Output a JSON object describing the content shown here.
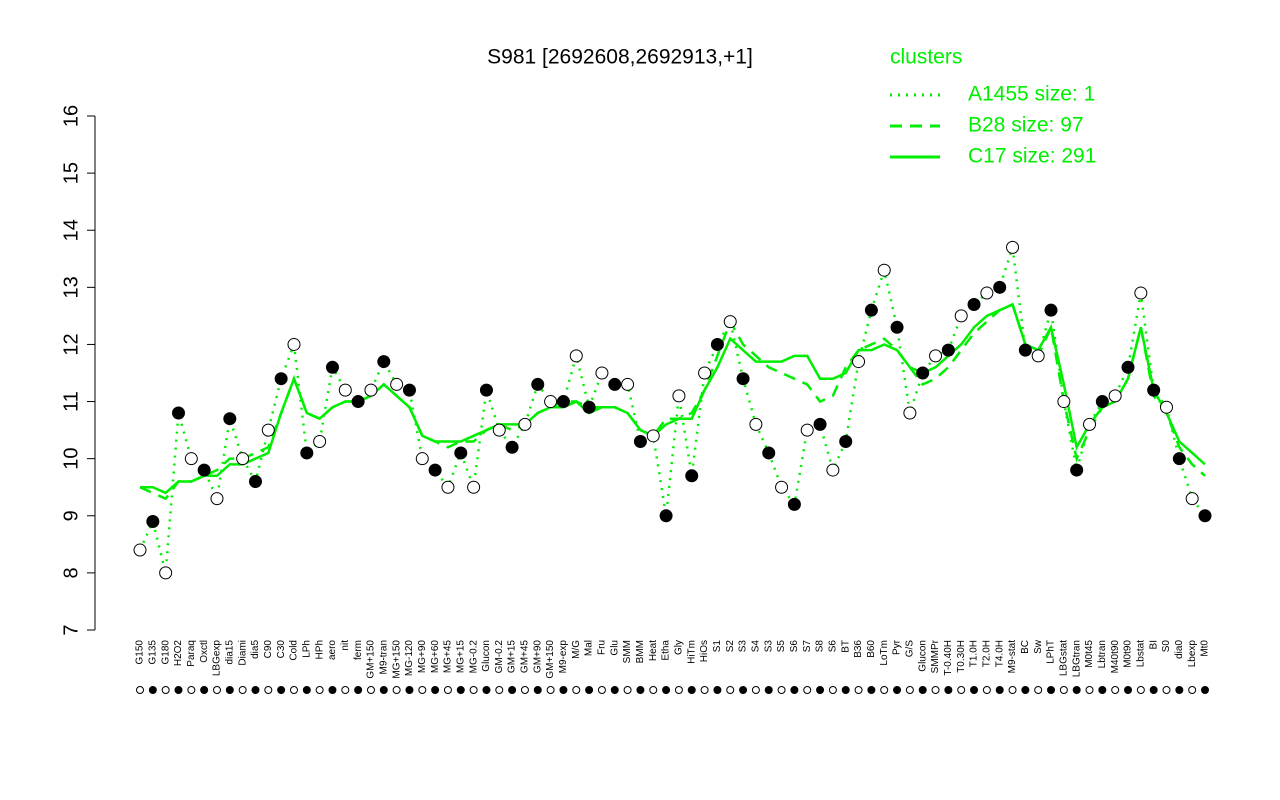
{
  "chart_data": {
    "type": "line",
    "title": "S981 [2692608,2692913,+1]",
    "legend_title": "clusters",
    "categories": [
      "G150",
      "G135",
      "G180",
      "H2O2",
      "Paraq",
      "Oxctl",
      "LBGexp",
      "dia15",
      "Diami",
      "dia5",
      "C90",
      "C30",
      "Cold",
      "LPh",
      "HPh",
      "aero",
      "nit",
      "ferm",
      "GM+150",
      "M9-tran",
      "MG+150",
      "MG-120",
      "MG+90",
      "MG+60",
      "MG+45",
      "MG+15",
      "MG-0.2",
      "Glucon",
      "GM-0.2",
      "GM+15",
      "GM+45",
      "GM+90",
      "GM+150",
      "M9-exp",
      "M/G",
      "Mal",
      "Fru",
      "Glu",
      "SMM",
      "BMM",
      "Heat",
      "Etha",
      "Gly",
      "HiTm",
      "HiOs",
      "S1",
      "S2",
      "S3",
      "S4",
      "S3",
      "S5",
      "S6",
      "S7",
      "S8",
      "S6",
      "BT",
      "B36",
      "B60",
      "LoTm",
      "Pyr",
      "G/S",
      "Glucon",
      "SMMPr",
      "T-0.40H",
      "T0.30H",
      "T1.0H",
      "T2.0H",
      "T4.0H",
      "M9-stat",
      "BC",
      "Sw",
      "LPhT",
      "LBGstat",
      "LBGtran",
      "M0t45",
      "Lbtran",
      "M40t90",
      "M0t90",
      "Lbstat",
      "BI",
      "S0",
      "dia0",
      "Lbexp",
      "Mt0"
    ],
    "series": [
      {
        "name": "A1455 size: 1",
        "color": "#00ee00",
        "dash": "dotted",
        "points": true,
        "values": [
          8.4,
          8.9,
          8.0,
          10.8,
          10.0,
          9.8,
          9.3,
          10.7,
          10.0,
          9.6,
          10.5,
          11.4,
          12.0,
          10.1,
          10.3,
          11.6,
          11.2,
          11.0,
          11.2,
          11.7,
          11.3,
          11.2,
          10.0,
          9.8,
          9.5,
          10.1,
          9.5,
          11.2,
          10.5,
          10.2,
          10.6,
          11.3,
          11.0,
          11.0,
          11.8,
          10.9,
          11.5,
          11.3,
          11.3,
          10.3,
          10.4,
          9.0,
          11.1,
          9.7,
          11.5,
          12.0,
          12.4,
          11.4,
          10.6,
          10.1,
          9.5,
          9.2,
          10.5,
          10.6,
          9.8,
          10.3,
          11.7,
          12.6,
          13.3,
          12.3,
          10.8,
          11.5,
          11.8,
          11.9,
          12.5,
          12.7,
          12.9,
          13.0,
          13.7,
          11.9,
          11.8,
          12.6,
          11.0,
          9.8,
          10.6,
          11.0,
          11.1,
          11.6,
          12.9,
          11.2,
          10.9,
          10.0,
          9.3,
          9.0
        ]
      },
      {
        "name": "B28 size: 97",
        "color": "#00ee00",
        "dash": "dashed",
        "points": false,
        "values": [
          9.5,
          9.4,
          9.3,
          9.6,
          9.6,
          9.7,
          9.8,
          10.0,
          10.0,
          10.1,
          10.2,
          10.8,
          11.4,
          10.8,
          10.7,
          10.9,
          11.0,
          11.0,
          11.1,
          11.3,
          11.1,
          10.9,
          10.4,
          10.3,
          10.2,
          10.3,
          10.3,
          10.5,
          10.6,
          10.5,
          10.6,
          10.8,
          10.9,
          11.0,
          11.0,
          10.9,
          10.9,
          10.9,
          10.8,
          10.5,
          10.4,
          10.7,
          10.7,
          10.8,
          11.2,
          11.8,
          12.4,
          12.0,
          11.8,
          11.6,
          11.5,
          11.4,
          11.3,
          11.0,
          11.1,
          11.6,
          11.9,
          12.0,
          12.1,
          11.9,
          11.6,
          11.3,
          11.4,
          11.6,
          11.9,
          12.2,
          12.4,
          12.6,
          12.7,
          12.0,
          11.8,
          12.3,
          11.0,
          10.0,
          10.5,
          10.9,
          11.0,
          11.4,
          12.3,
          11.1,
          10.8,
          10.2,
          9.9,
          9.7
        ]
      },
      {
        "name": "C17 size: 291",
        "color": "#00ee00",
        "dash": "solid",
        "points": false,
        "values": [
          9.5,
          9.5,
          9.4,
          9.6,
          9.6,
          9.7,
          9.7,
          9.9,
          9.9,
          10.0,
          10.1,
          10.8,
          11.4,
          10.8,
          10.7,
          10.9,
          11.0,
          11.0,
          11.1,
          11.3,
          11.1,
          10.9,
          10.4,
          10.3,
          10.3,
          10.3,
          10.4,
          10.5,
          10.6,
          10.6,
          10.6,
          10.8,
          10.9,
          10.9,
          11.0,
          10.8,
          10.9,
          10.9,
          10.8,
          10.5,
          10.4,
          10.6,
          10.7,
          10.7,
          11.2,
          11.6,
          12.1,
          11.9,
          11.7,
          11.7,
          11.7,
          11.8,
          11.8,
          11.4,
          11.4,
          11.5,
          11.9,
          11.9,
          12.0,
          11.9,
          11.6,
          11.5,
          11.6,
          11.8,
          12.0,
          12.3,
          12.5,
          12.6,
          12.7,
          12.0,
          11.9,
          12.3,
          11.3,
          10.2,
          10.6,
          10.9,
          11.0,
          11.4,
          12.3,
          11.2,
          10.8,
          10.3,
          10.1,
          9.9
        ]
      }
    ],
    "ylim": [
      7,
      16
    ],
    "yticks": [
      7,
      8,
      9,
      10,
      11,
      12,
      13,
      14,
      15,
      16
    ]
  }
}
